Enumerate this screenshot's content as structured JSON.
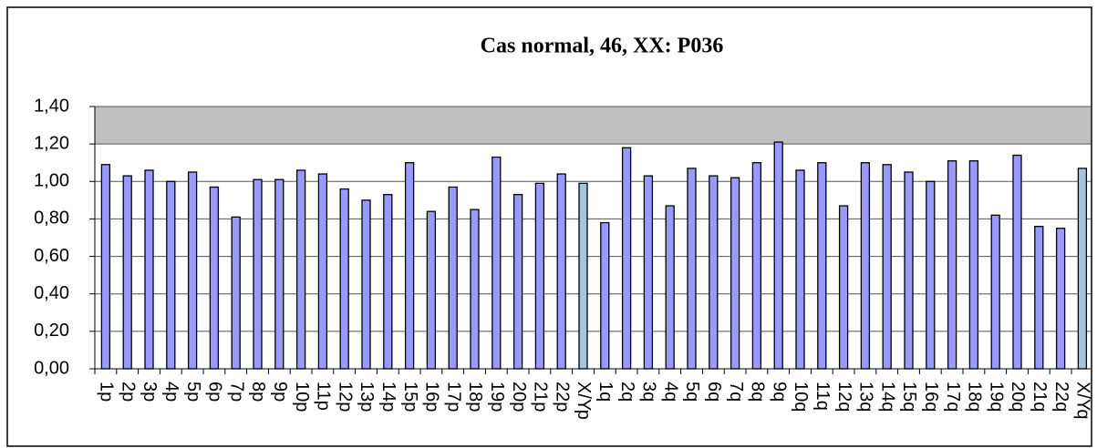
{
  "chart_data": {
    "type": "bar",
    "title": "Cas normal, 46, XX: P036",
    "categories": [
      "1p",
      "2p",
      "3p",
      "4p",
      "5p",
      "6p",
      "7p",
      "8p",
      "9p",
      "10p",
      "11p",
      "12p",
      "13p",
      "14p",
      "15p",
      "16p",
      "17p",
      "18p",
      "19p",
      "20p",
      "21p",
      "22p",
      "X/Yp",
      "1q",
      "2q",
      "3q",
      "4q",
      "5q",
      "6q",
      "7q",
      "8q",
      "9q",
      "10q",
      "11q",
      "12q",
      "13q",
      "14q",
      "15q",
      "16q",
      "17q",
      "18q",
      "19q",
      "20q",
      "21q",
      "22q",
      "X/Yq"
    ],
    "values": [
      1.09,
      1.03,
      1.06,
      1.0,
      1.05,
      0.97,
      0.81,
      1.01,
      1.01,
      1.06,
      1.04,
      0.96,
      0.9,
      0.93,
      1.1,
      0.84,
      0.97,
      0.85,
      1.13,
      0.93,
      0.99,
      1.04,
      0.99,
      0.78,
      1.18,
      1.03,
      0.87,
      1.07,
      1.03,
      1.02,
      1.1,
      1.21,
      1.06,
      1.1,
      0.87,
      1.1,
      1.09,
      1.05,
      1.0,
      1.11,
      1.11,
      0.82,
      1.14,
      0.76,
      0.75,
      1.07
    ],
    "colors": [
      "#9999ff",
      "#9999ff",
      "#9999ff",
      "#9999ff",
      "#9999ff",
      "#9999ff",
      "#9999ff",
      "#9999ff",
      "#9999ff",
      "#9999ff",
      "#9999ff",
      "#9999ff",
      "#9999ff",
      "#9999ff",
      "#9999ff",
      "#9999ff",
      "#9999ff",
      "#9999ff",
      "#9999ff",
      "#9999ff",
      "#9999ff",
      "#9999ff",
      "#a6c4dc",
      "#9999ff",
      "#9999ff",
      "#9999ff",
      "#9999ff",
      "#9999ff",
      "#9999ff",
      "#9999ff",
      "#9999ff",
      "#9999ff",
      "#9999ff",
      "#9999ff",
      "#9999ff",
      "#9999ff",
      "#9999ff",
      "#9999ff",
      "#9999ff",
      "#9999ff",
      "#9999ff",
      "#9999ff",
      "#9999ff",
      "#9999ff",
      "#9999ff",
      "#a6c4dc"
    ],
    "ylim": [
      0,
      1.4
    ],
    "yticks": [
      {
        "value": 0,
        "label": "0,00"
      },
      {
        "value": 0.2,
        "label": "0,20"
      },
      {
        "value": 0.4,
        "label": "0,40"
      },
      {
        "value": 0.6,
        "label": "0,60"
      },
      {
        "value": 0.8,
        "label": "0,80"
      },
      {
        "value": 1.0,
        "label": "1,00"
      },
      {
        "value": 1.2,
        "label": "1,20"
      },
      {
        "value": 1.4,
        "label": "1,40"
      }
    ],
    "grid": true
  }
}
